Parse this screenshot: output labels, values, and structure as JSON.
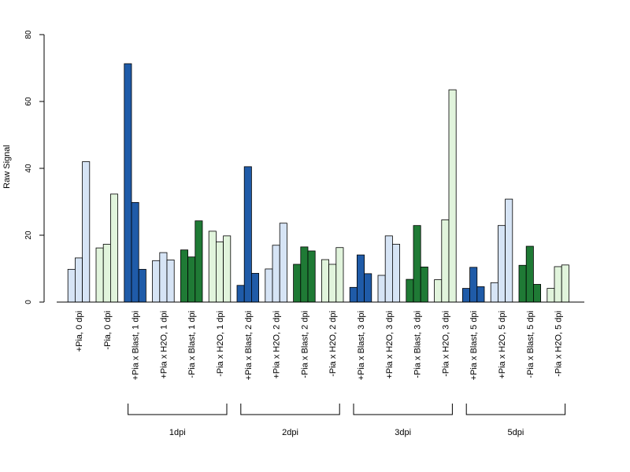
{
  "chart_data": {
    "type": "bar",
    "ylabel": "Raw Signal",
    "ylim": [
      0,
      80
    ],
    "yticks": [
      0,
      20,
      40,
      60,
      80
    ],
    "categories": [
      "+Pia, 0 dpi",
      "-Pia, 0 dpi",
      "+Pia x Blast, 1 dpi",
      "+Pia x H2O, 1 dpi",
      "-Pia x Blast, 1 dpi",
      "-Pia x H2O, 1 dpi",
      "+Pia x Blast, 2 dpi",
      "+Pia x H2O, 2 dpi",
      "-Pia x Blast, 2 dpi",
      "-Pia x H2O, 2 dpi",
      "+Pia x Blast, 3 dpi",
      "+Pia x H2O, 3 dpi",
      "-Pia x Blast, 3 dpi",
      "-Pia x H2O, 3 dpi",
      "+Pia x Blast, 5 dpi",
      "+Pia x H2O, 5 dpi",
      "-Pia x Blast, 5 dpi",
      "-Pia x H2O, 5 dpi"
    ],
    "colors": [
      "#d6e4f5",
      "#e1f4dc",
      "#1f5ba8",
      "#d6e4f5",
      "#1f7a35",
      "#e1f4dc",
      "#1f5ba8",
      "#d6e4f5",
      "#1f7a35",
      "#e1f4dc",
      "#1f5ba8",
      "#d6e4f5",
      "#1f7a35",
      "#e1f4dc",
      "#1f5ba8",
      "#d6e4f5",
      "#1f7a35",
      "#e1f4dc"
    ],
    "values": [
      [
        9.8,
        13.2,
        42.0
      ],
      [
        16.2,
        17.3,
        32.3
      ],
      [
        71.3,
        29.8,
        9.8
      ],
      [
        12.4,
        14.8,
        12.6
      ],
      [
        15.6,
        13.5,
        24.3
      ],
      [
        21.2,
        18.0,
        19.8
      ],
      [
        5.0,
        40.5,
        8.6
      ],
      [
        9.9,
        17.0,
        23.6
      ],
      [
        11.3,
        16.5,
        15.3
      ],
      [
        12.7,
        11.3,
        16.3
      ],
      [
        4.4,
        14.1,
        8.5
      ],
      [
        8.0,
        19.8,
        17.3
      ],
      [
        6.8,
        22.9,
        10.5
      ],
      [
        6.7,
        24.6,
        63.5
      ],
      [
        4.1,
        10.4,
        4.6
      ],
      [
        5.8,
        22.9,
        30.8
      ],
      [
        11.0,
        16.7,
        5.3
      ],
      [
        4.1,
        10.6,
        11.1
      ]
    ],
    "groups": [
      {
        "label": "1dpi",
        "from": 2,
        "to": 5
      },
      {
        "label": "2dpi",
        "from": 6,
        "to": 9
      },
      {
        "label": "3dpi",
        "from": 10,
        "to": 13
      },
      {
        "label": "5dpi",
        "from": 14,
        "to": 17
      }
    ]
  }
}
